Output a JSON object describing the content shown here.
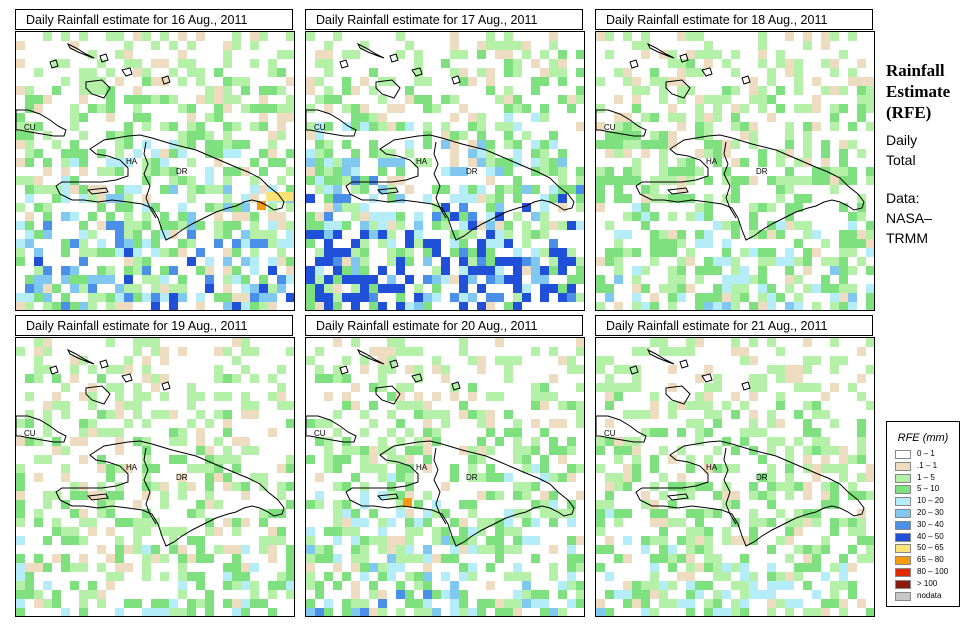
{
  "panels": [
    {
      "title": "Daily Rainfall estimate for  16 Aug., 2011",
      "seed": 16,
      "intensity": 1.0
    },
    {
      "title": "Daily Rainfall estimate for  17 Aug., 2011",
      "seed": 17,
      "intensity": 1.4
    },
    {
      "title": "Daily Rainfall estimate for  18 Aug., 2011",
      "seed": 18,
      "intensity": 0.6
    },
    {
      "title": "Daily Rainfall estimate for  19 Aug., 2011",
      "seed": 19,
      "intensity": 0.5
    },
    {
      "title": "Daily Rainfall estimate for  20 Aug., 2011",
      "seed": 20,
      "intensity": 0.75
    },
    {
      "title": "Daily Rainfall estimate for  21 Aug., 2011",
      "seed": 21,
      "intensity": 0.55
    }
  ],
  "map_labels": {
    "cu": "CU",
    "ha": "HA",
    "dr": "DR"
  },
  "side": {
    "title_line1": "Rainfall",
    "title_line2": "Estimate",
    "title_line3": "(RFE)",
    "daily": "Daily",
    "total": "Total",
    "data_label": "Data:",
    "source1": "NASA–",
    "source2": "TRMM"
  },
  "legend": {
    "title": "RFE (mm)",
    "items": [
      {
        "label": "0 – 1",
        "color": "#ffffff"
      },
      {
        "label": ".1 – 1",
        "color": "#eedcc0"
      },
      {
        "label": "1 – 5",
        "color": "#b4f0a8"
      },
      {
        "label": "5 – 10",
        "color": "#7ee07e"
      },
      {
        "label": "10 – 20",
        "color": "#b4ecf8"
      },
      {
        "label": "20 – 30",
        "color": "#80c8f0"
      },
      {
        "label": "30 – 40",
        "color": "#4a90e8"
      },
      {
        "label": "40 – 50",
        "color": "#2050d8"
      },
      {
        "label": "50 – 65",
        "color": "#fbe278"
      },
      {
        "label": "65 – 80",
        "color": "#f89a10"
      },
      {
        "label": "80 – 100",
        "color": "#e02a00"
      },
      {
        "label": "> 100",
        "color": "#8a1a10"
      },
      {
        "label": "nodata",
        "color": "#c8c8c8"
      }
    ]
  }
}
